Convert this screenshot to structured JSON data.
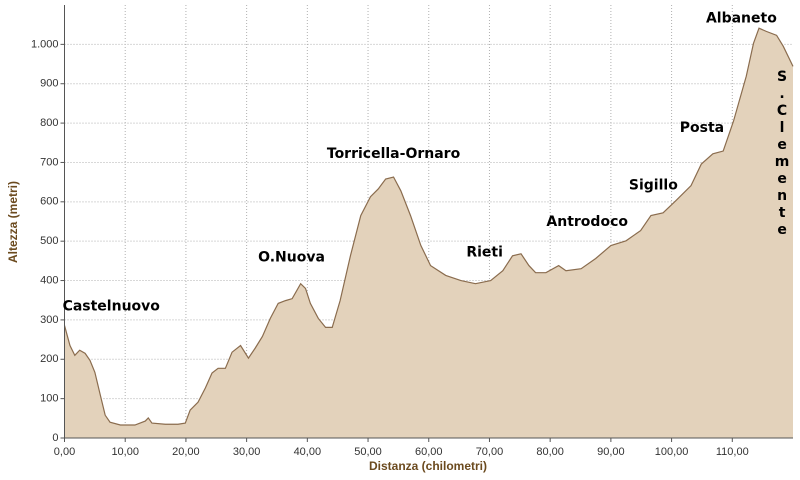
{
  "chart_data": {
    "type": "area",
    "x_label": "Distanza (chilometri)",
    "y_label": "Altezza (metri)",
    "x": [
      0,
      0.9,
      1.7,
      2.5,
      3.4,
      4.2,
      5.0,
      5.9,
      6.7,
      7.5,
      9.2,
      11.6,
      13.3,
      13.8,
      14.4,
      16.6,
      18.7,
      19.9,
      20.7,
      22.0,
      23.2,
      24.3,
      25.3,
      26.5,
      27.6,
      29.0,
      30.3,
      31.4,
      32.6,
      33.9,
      35.2,
      36.4,
      37.5,
      38.9,
      39.7,
      40.5,
      41.8,
      43.0,
      44.1,
      45.4,
      47.1,
      48.8,
      50.4,
      51.7,
      52.9,
      54.2,
      55.4,
      57.0,
      58.7,
      60.3,
      62.8,
      65.3,
      67.7,
      70.2,
      72.2,
      73.8,
      75.2,
      76.5,
      77.6,
      79.3,
      81.4,
      82.6,
      85.1,
      87.5,
      90.0,
      92.5,
      94.9,
      96.6,
      98.6,
      100.7,
      103.2,
      104.9,
      106.8,
      108.5,
      110.2,
      112.3,
      113.5,
      114.4,
      115.6,
      117.3,
      118.4,
      120
    ],
    "values": [
      286,
      235,
      210,
      223,
      215,
      197,
      167,
      109,
      58,
      40,
      33,
      33,
      43,
      51,
      38,
      35,
      35,
      38,
      71,
      91,
      127,
      165,
      177,
      177,
      218,
      235,
      203,
      228,
      258,
      304,
      342,
      349,
      354,
      392,
      380,
      342,
      304,
      281,
      281,
      349,
      463,
      565,
      613,
      633,
      658,
      663,
      628,
      565,
      489,
      438,
      413,
      400,
      392,
      400,
      425,
      463,
      468,
      438,
      420,
      420,
      438,
      425,
      430,
      456,
      489,
      501,
      527,
      565,
      572,
      603,
      641,
      696,
      722,
      729,
      805,
      919,
      1003,
      1041,
      1033,
      1023,
      995,
      944
    ],
    "color": "#e3d2bb",
    "line_color": "#8a6c4e",
    "xlim": [
      0,
      120
    ],
    "ylim": [
      0,
      1100
    ],
    "xticks": [
      {
        "value": 0,
        "label": "0,00"
      },
      {
        "value": 10,
        "label": "10,00"
      },
      {
        "value": 20,
        "label": "20,00"
      },
      {
        "value": 30,
        "label": "30,00"
      },
      {
        "value": 40,
        "label": "40,00"
      },
      {
        "value": 50,
        "label": "50,00"
      },
      {
        "value": 60,
        "label": "60,00"
      },
      {
        "value": 70,
        "label": "70,00"
      },
      {
        "value": 80,
        "label": "80,00"
      },
      {
        "value": 90,
        "label": "90,00"
      },
      {
        "value": 100,
        "label": "100,00"
      },
      {
        "value": 110,
        "label": "110,00"
      }
    ],
    "yticks": [
      0,
      100,
      200,
      300,
      400,
      500,
      600,
      700,
      800,
      900,
      {
        "value": 1000,
        "label": "1.000"
      }
    ],
    "grid": true,
    "annotations": [
      {
        "text": "Castelnuovo",
        "x": 7.7,
        "y": 334
      },
      {
        "text": "O.Nuova",
        "x": 37.4,
        "y": 458
      },
      {
        "text": "Torricella-Ornaro",
        "x": 54.2,
        "y": 722
      },
      {
        "text": "Rieti",
        "x": 69.2,
        "y": 471
      },
      {
        "text": "Antrodoco",
        "x": 86.1,
        "y": 549
      },
      {
        "text": "Sigillo",
        "x": 97.0,
        "y": 641
      },
      {
        "text": "Posta",
        "x": 105.0,
        "y": 787
      },
      {
        "text": "Albaneto",
        "x": 111.5,
        "y": 1066
      },
      {
        "text": "S.Clemente",
        "x": 118.2,
        "y": 722,
        "vertical": true
      }
    ]
  }
}
